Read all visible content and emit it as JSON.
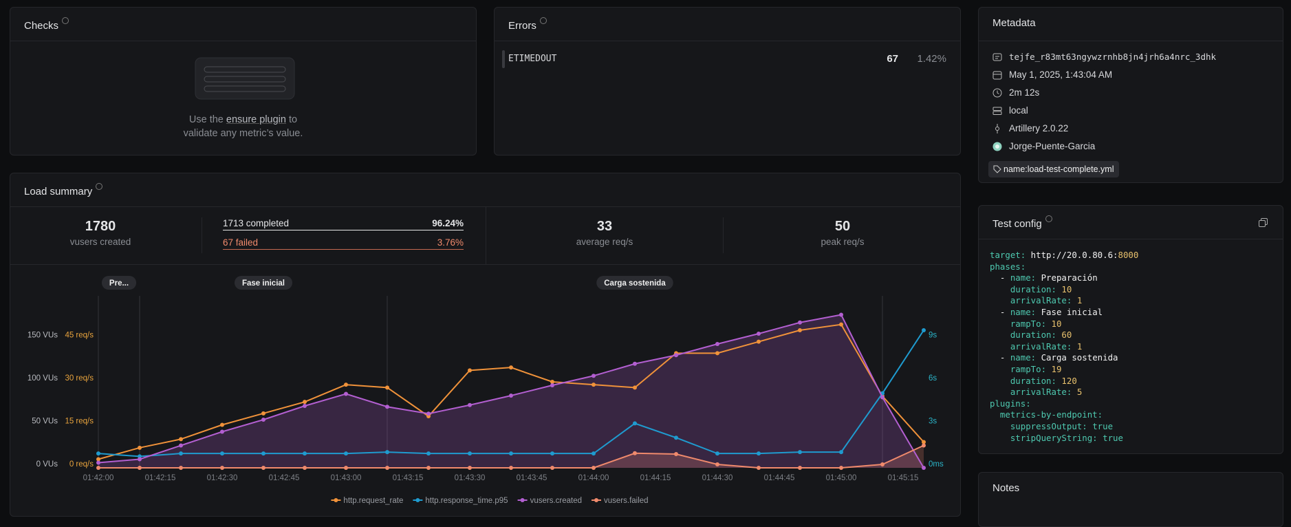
{
  "checks": {
    "title": "Checks",
    "text_before": "Use the ",
    "link": "ensure plugin",
    "text_after": " to",
    "text_line2": "validate any metric’s value."
  },
  "errors": {
    "title": "Errors",
    "rows": [
      {
        "code": "ETIMEDOUT",
        "count": 67,
        "percent": "1.42%"
      }
    ]
  },
  "metadata": {
    "title": "Metadata",
    "id": "tejfe_r83mt63ngywzrnhb8jn4jrh6a4nrc_3dhk",
    "date": "May 1, 2025, 1:43:04 AM",
    "duration": "2m 12s",
    "environment": "local",
    "version": "Artillery 2.0.22",
    "user": "Jorge-Puente-Garcia",
    "tag": "name:load-test-complete.yml"
  },
  "load_summary": {
    "title": "Load summary",
    "vusers_created": 1780,
    "vusers_created_label": "vusers created",
    "completed": "1713 completed",
    "completed_percent": "96.24%",
    "failed": "67 failed",
    "failed_percent": "3.76%",
    "average_rps": 33,
    "average_rps_label": "average req/s",
    "peak_rps": 50,
    "peak_rps_label": "peak req/s"
  },
  "chart_data": {
    "type": "line",
    "x": [
      "01:42:00",
      "01:42:10",
      "01:42:20",
      "01:42:30",
      "01:42:40",
      "01:42:50",
      "01:43:00",
      "01:43:10",
      "01:43:20",
      "01:43:30",
      "01:43:40",
      "01:43:50",
      "01:44:00",
      "01:44:10",
      "01:44:20",
      "01:44:30",
      "01:44:40",
      "01:44:50",
      "01:45:00",
      "01:45:10",
      "01:45:20"
    ],
    "xlim": [
      "01:42:00",
      "01:45:20"
    ],
    "xticks": [
      "01:42:00",
      "01:42:15",
      "01:42:30",
      "01:42:45",
      "01:43:00",
      "01:43:15",
      "01:43:30",
      "01:43:45",
      "01:44:00",
      "01:44:15",
      "01:44:30",
      "01:44:45",
      "01:45:00",
      "01:45:15"
    ],
    "ylim": [
      0,
      200
    ],
    "yticks": [
      {
        "value": 0,
        "label": "0 VUs"
      },
      {
        "value": 50,
        "label": "50 VUs"
      },
      {
        "value": 100,
        "label": "100 VUs"
      },
      {
        "value": 150,
        "label": "150 VUs"
      }
    ],
    "y2lim": [
      0,
      60
    ],
    "y2ticks": [
      {
        "value": 0,
        "label": "0 req/s"
      },
      {
        "value": 15,
        "label": "15 req/s"
      },
      {
        "value": 30,
        "label": "30 req/s"
      },
      {
        "value": 45,
        "label": "45 req/s"
      }
    ],
    "y3lim": [
      0,
      12
    ],
    "y3ticks": [
      {
        "value": 0,
        "label": "0ms"
      },
      {
        "value": 3,
        "label": "3s"
      },
      {
        "value": 6,
        "label": "6s"
      },
      {
        "value": 9,
        "label": "9s"
      }
    ],
    "phases": [
      {
        "label": "Pre...",
        "start": "01:42:00",
        "end": "01:42:10"
      },
      {
        "label": "Fase inicial",
        "start": "01:42:10",
        "end": "01:43:10"
      },
      {
        "label": "Carga sostenida",
        "start": "01:43:10",
        "end": "01:45:10"
      }
    ],
    "series": [
      {
        "name": "http.request_rate",
        "color": "#f0923a",
        "axis": "y2",
        "values": [
          3,
          7,
          10,
          15,
          19,
          23,
          29,
          28,
          18,
          34,
          35,
          30,
          29,
          28,
          40,
          40,
          44,
          48,
          50,
          25,
          9
        ]
      },
      {
        "name": "http.response_time.p95",
        "color": "#1f9bcf",
        "axis": "y3",
        "values": [
          1.0,
          0.8,
          1.0,
          1.0,
          1.0,
          1.0,
          1.0,
          1.1,
          1.0,
          1.0,
          1.0,
          1.0,
          1.0,
          3.1,
          2.1,
          1.0,
          1.0,
          1.1,
          1.1,
          5.2,
          9.6
        ]
      },
      {
        "name": "vusers.created",
        "color": "#b35fd1",
        "axis": "y",
        "area": true,
        "values": [
          6,
          10,
          26,
          42,
          56,
          72,
          86,
          71,
          63,
          73,
          84,
          96,
          107,
          121,
          131,
          144,
          156,
          169,
          178,
          82,
          0
        ]
      },
      {
        "name": "vusers.failed",
        "color": "#f08a6c",
        "axis": "y",
        "area": true,
        "values": [
          0,
          0,
          0,
          0,
          0,
          0,
          0,
          0,
          0,
          0,
          0,
          0,
          0,
          17,
          16,
          4,
          0,
          0,
          0,
          4,
          26
        ]
      }
    ]
  },
  "test_config": {
    "title": "Test config",
    "lines": [
      {
        "level": 0,
        "key": "target:",
        "value": "http://20.0.80.6:",
        "port": 8000
      },
      {
        "level": 0,
        "key": "phases:"
      },
      {
        "level": 1,
        "prefix": "-",
        "key": "name:",
        "value": "Preparación"
      },
      {
        "level": 2,
        "key": "duration:",
        "value": 10
      },
      {
        "level": 2,
        "key": "arrivalRate:",
        "value": 1
      },
      {
        "level": 1,
        "prefix": "-",
        "key": "name:",
        "value": "Fase inicial"
      },
      {
        "level": 2,
        "key": "rampTo:",
        "value": 10
      },
      {
        "level": 2,
        "key": "duration:",
        "value": 60
      },
      {
        "level": 2,
        "key": "arrivalRate:",
        "value": 1
      },
      {
        "level": 1,
        "prefix": "-",
        "key": "name:",
        "value": "Carga sostenida"
      },
      {
        "level": 2,
        "key": "rampTo:",
        "value": 19
      },
      {
        "level": 2,
        "key": "duration:",
        "value": 120
      },
      {
        "level": 2,
        "key": "arrivalRate:",
        "value": 5
      },
      {
        "level": 0,
        "key": "plugins:"
      },
      {
        "level": 1,
        "key": "metrics-by-endpoint:"
      },
      {
        "level": 2,
        "key": "suppressOutput:",
        "value": true
      },
      {
        "level": 2,
        "key": "stripQueryString:",
        "value": true
      }
    ]
  },
  "notes": {
    "title": "Notes"
  }
}
